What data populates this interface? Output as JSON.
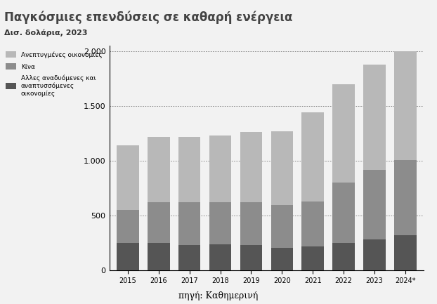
{
  "chart_data": {
    "type": "bar",
    "title": "Παγκόσμιες επενδύσεις σε καθαρή ενέργεια",
    "subtitle": "Δισ. δολάρια, 2023",
    "source": "πηγή: Καθημερινή",
    "stacked": true,
    "grid": true,
    "legend": "upper left",
    "categories": [
      "2015",
      "2016",
      "2017",
      "2018",
      "2019",
      "2020",
      "2021",
      "2022",
      "2023",
      "2024*"
    ],
    "series": [
      {
        "name": "Ανεπτυγμένες οικονομίες",
        "color": "#b8b8b8",
        "values": [
          590,
          600,
          600,
          610,
          640,
          670,
          810,
          900,
          960,
          990
        ]
      },
      {
        "name": "Κίνα",
        "color": "#8c8c8c",
        "values": [
          300,
          370,
          385,
          380,
          385,
          390,
          410,
          550,
          635,
          690
        ]
      },
      {
        "name": "Αλλες αναδυόμενες και αναπτυσσόμενες οικονομίες",
        "color": "#555555",
        "values": [
          250,
          250,
          235,
          240,
          235,
          210,
          220,
          250,
          285,
          320
        ]
      }
    ],
    "ylim": [
      0,
      2050
    ],
    "yticks": [
      0,
      500,
      {
        "value": 1000,
        "label": "1.000"
      },
      {
        "value": 1500,
        "label": "1.500"
      },
      {
        "value": 2000,
        "label": "2.000"
      }
    ]
  }
}
